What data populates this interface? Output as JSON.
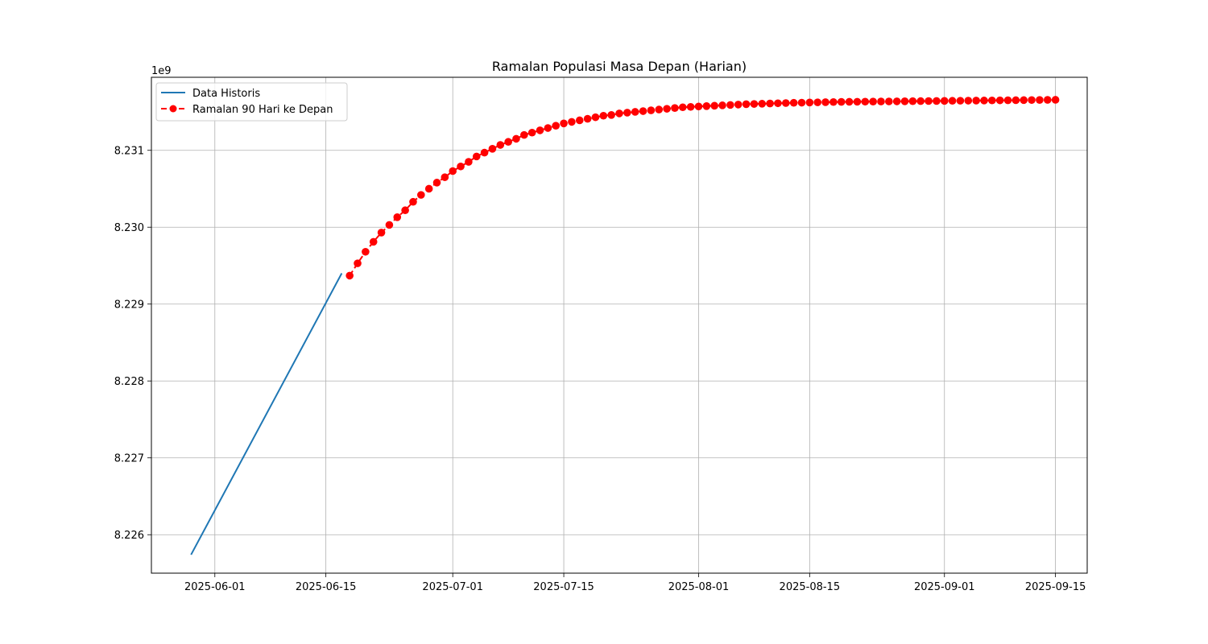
{
  "chart_data": {
    "type": "line",
    "title": "Ramalan Populasi Masa Depan (Harian)",
    "xlabel": "",
    "ylabel": "",
    "y_offset_label": "1e9",
    "y_scale": 1000000000,
    "grid": true,
    "legend_position": "top-left",
    "xlim": [
      "2025-05-24",
      "2025-09-19"
    ],
    "ylim": [
      8225500000,
      8231950000
    ],
    "x_ticks": [
      "2025-06-01",
      "2025-06-15",
      "2025-07-01",
      "2025-07-15",
      "2025-08-01",
      "2025-08-15",
      "2025-09-01",
      "2025-09-15"
    ],
    "y_ticks": [
      {
        "value": 8226000000,
        "label": "8.226"
      },
      {
        "value": 8227000000,
        "label": "8.227"
      },
      {
        "value": 8228000000,
        "label": "8.228"
      },
      {
        "value": 8229000000,
        "label": "8.229"
      },
      {
        "value": 8230000000,
        "label": "8.230"
      },
      {
        "value": 8231000000,
        "label": "8.231"
      }
    ],
    "series": [
      {
        "name": "Data Historis",
        "style": "solid-line",
        "color": "#1f77b4",
        "points": [
          {
            "x": "2025-05-29",
            "y": 8225740000
          },
          {
            "x": "2025-06-17",
            "y": 8229400000
          }
        ]
      },
      {
        "name": "Ramalan 90 Hari ke Depan",
        "style": "dashed-line-with-markers",
        "color": "#ff0000",
        "start_date": "2025-06-18",
        "values": [
          8229370000,
          8229530000,
          8229680000,
          8229810000,
          8229930000,
          8230030000,
          8230130000,
          8230220000,
          8230330000,
          8230420000,
          8230500000,
          8230580000,
          8230650000,
          8230730000,
          8230790000,
          8230850000,
          8230920000,
          8230970000,
          8231020000,
          8231070000,
          8231110000,
          8231150000,
          8231200000,
          8231230000,
          8231260000,
          8231290000,
          8231320000,
          8231350000,
          8231370000,
          8231390000,
          8231410000,
          8231430000,
          8231450000,
          8231460000,
          8231480000,
          8231490000,
          8231500000,
          8231510000,
          8231520000,
          8231530000,
          8231540000,
          8231550000,
          8231560000,
          8231565000,
          8231570000,
          8231575000,
          8231580000,
          8231585000,
          8231590000,
          8231595000,
          8231600000,
          8231603000,
          8231606000,
          8231609000,
          8231612000,
          8231615000,
          8231618000,
          8231620000,
          8231622000,
          8231624000,
          8231626000,
          8231628000,
          8231630000,
          8231631000,
          8231632000,
          8231633000,
          8231634000,
          8231635000,
          8231636000,
          8231637000,
          8231638000,
          8231639000,
          8231640000,
          8231641000,
          8231642000,
          8231643000,
          8231644000,
          8231645000,
          8231646000,
          8231647000,
          8231648000,
          8231649000,
          8231650000,
          8231651000,
          8231652000,
          8231653000,
          8231654000,
          8231655000,
          8231656000,
          8231657000
        ]
      }
    ]
  }
}
